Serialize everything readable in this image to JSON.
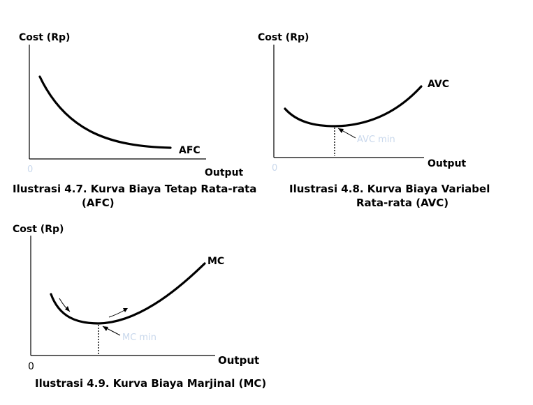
{
  "chart_data": [
    {
      "type": "line",
      "ylabel": "Cost (Rp)",
      "xlabel": "Output",
      "origin_label": "0",
      "series": [
        {
          "name": "AFC",
          "shape": "decreasing-hyperbola"
        }
      ],
      "caption_line1": "Ilustrasi 4.7. Kurva Biaya Tetap Rata-rata",
      "caption_line2": "(AFC)"
    },
    {
      "type": "line",
      "ylabel": "Cost (Rp)",
      "xlabel": "Output",
      "origin_label": "0",
      "series": [
        {
          "name": "AVC",
          "shape": "u-shaped"
        }
      ],
      "annotation": "AVC min",
      "caption_line1": "Ilustrasi 4.8. Kurva Biaya Variabel",
      "caption_line2": "Rata-rata  (AVC)"
    },
    {
      "type": "line",
      "ylabel": "Cost (Rp)",
      "xlabel": "Output",
      "origin_label": "0",
      "series": [
        {
          "name": "MC",
          "shape": "u-shaped"
        }
      ],
      "annotation": "MC min",
      "caption_line1": "Ilustrasi 4.9. Kurva Biaya Marjinal (MC)"
    }
  ]
}
